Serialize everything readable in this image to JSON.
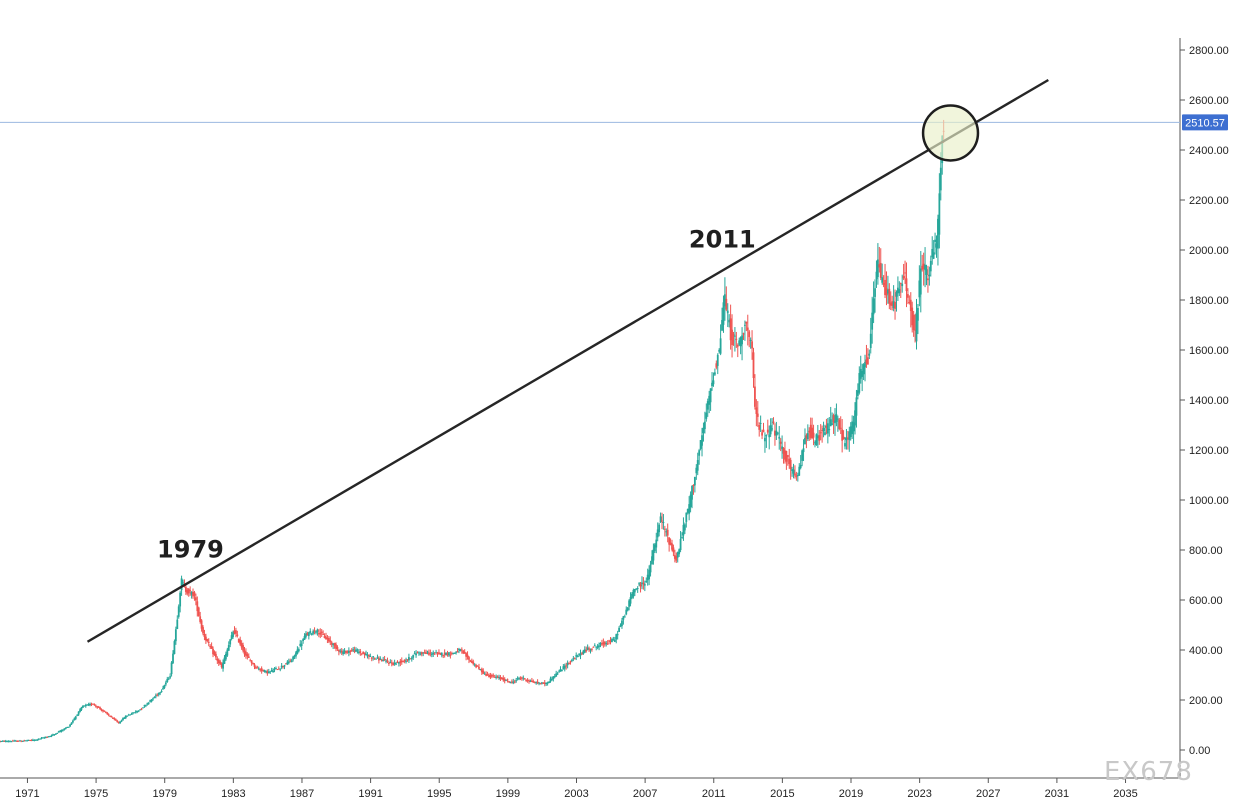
{
  "watermark": "EX678",
  "colors": {
    "up": "#26a69a",
    "down": "#ef5350",
    "trendline": "#262626",
    "price_line": "#9cb8e0",
    "price_tag": "#3d6fd1",
    "circle_stroke": "#1e1e1e",
    "circle_fill": "#e9f0c9"
  },
  "chart_data": {
    "type": "line",
    "style": "candlestick-monthly",
    "title": "",
    "xlabel": "",
    "ylabel": "",
    "xlim": [
      1969.4,
      2038.0
    ],
    "ylim": [
      0,
      2800
    ],
    "x_ticks": [
      1971,
      1975,
      1979,
      1983,
      1987,
      1991,
      1995,
      1999,
      2003,
      2007,
      2011,
      2015,
      2019,
      2023,
      2027,
      2031,
      2035
    ],
    "y_ticks": [
      "0.00",
      "200.00",
      "400.00",
      "600.00",
      "800.00",
      "1000.00",
      "1200.00",
      "1400.00",
      "1600.00",
      "1800.00",
      "2000.00",
      "2200.00",
      "2400.00",
      "2600.00",
      "2800.00"
    ],
    "grid": false,
    "series": [
      {
        "x": [
          1969.4,
          1970.5,
          1971.5,
          1972.5,
          1973.5,
          1974.3,
          1974.9,
          1975.6,
          1976.4,
          1976.8,
          1977.6,
          1978.3,
          1978.9,
          1979.4,
          1979.8,
          1980.05,
          1980.3,
          1980.8,
          1981.3,
          1981.8,
          1982.4,
          1983.1,
          1983.8,
          1984.4,
          1985.1,
          1985.8,
          1986.5,
          1987.3,
          1987.9,
          1988.6,
          1989.4,
          1990.1,
          1990.8,
          1991.5,
          1992.4,
          1993.2,
          1993.8,
          1994.8,
          1995.8,
          1996.3,
          1997.0,
          1997.8,
          1998.5,
          1999.3,
          1999.8,
          2000.6,
          2001.3,
          2002.0,
          2002.8,
          2003.6,
          2004.4,
          2005.3,
          2006.0,
          2006.4,
          2007.2,
          2008.0,
          2008.4,
          2008.9,
          2009.7,
          2010.4,
          2011.0,
          2011.4,
          2011.7,
          2012.1,
          2012.6,
          2012.9,
          2013.3,
          2013.5,
          2014.0,
          2014.5,
          2015.1,
          2015.9,
          2016.6,
          2016.9,
          2017.6,
          2018.2,
          2018.7,
          2019.2,
          2019.6,
          2020.1,
          2020.6,
          2021.0,
          2021.6,
          2022.2,
          2022.8,
          2023.2,
          2023.6,
          2023.9,
          2024.1,
          2024.3,
          2024.45
        ],
        "values": [
          35,
          36,
          40,
          58,
          95,
          175,
          185,
          150,
          108,
          135,
          160,
          200,
          240,
          300,
          520,
          680,
          640,
          620,
          470,
          400,
          330,
          480,
          380,
          330,
          310,
          330,
          360,
          460,
          480,
          440,
          390,
          400,
          380,
          365,
          345,
          360,
          390,
          385,
          385,
          400,
          350,
          300,
          290,
          270,
          290,
          270,
          265,
          310,
          360,
          400,
          420,
          440,
          560,
          640,
          680,
          930,
          850,
          760,
          1000,
          1250,
          1480,
          1600,
          1820,
          1650,
          1620,
          1720,
          1600,
          1350,
          1250,
          1300,
          1200,
          1080,
          1300,
          1230,
          1280,
          1340,
          1220,
          1300,
          1500,
          1560,
          1950,
          1850,
          1780,
          1900,
          1650,
          1950,
          1900,
          2000,
          2030,
          2300,
          2510
        ]
      }
    ],
    "trendline": {
      "x": [
        1974.5,
        2030.5
      ],
      "y": [
        433,
        2680
      ]
    },
    "last_price": 2510.57,
    "last_price_label": "2510.57",
    "annotations": [
      {
        "text": "1979",
        "x": 1980.5,
        "y": 770
      },
      {
        "text": "2011",
        "x": 2011.5,
        "y": 2010
      }
    ],
    "highlight_circle": {
      "x": 2024.8,
      "y": 2468,
      "r_years": 1.6
    }
  }
}
